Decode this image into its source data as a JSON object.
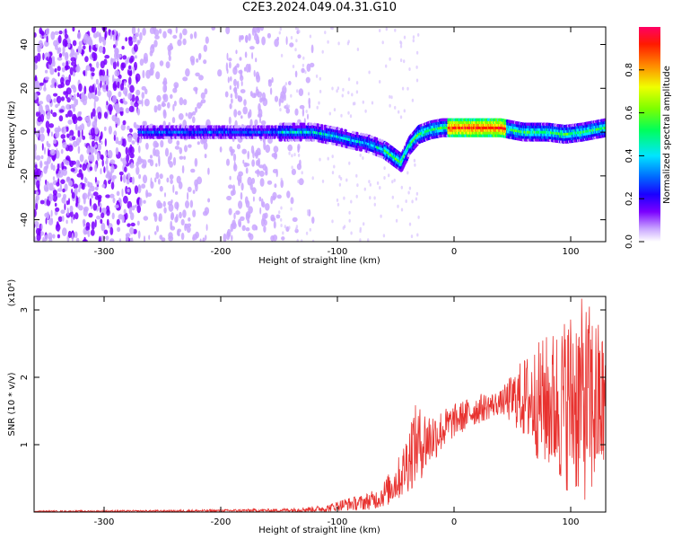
{
  "window": {
    "title": "C2E3.2024.049.04.31.G10"
  },
  "chart_data": [
    {
      "type": "heatmap",
      "xlabel": "Height of straight line (km)",
      "ylabel": "Frequency (Hz)",
      "xlim": [
        -360,
        130
      ],
      "ylim": [
        -50,
        48
      ],
      "xticks": [
        -300,
        -200,
        -100,
        0,
        100
      ],
      "yticks": [
        -40,
        -20,
        0,
        20,
        40
      ],
      "colorbar": {
        "label": "Normalized spectral amplitude",
        "range": [
          0,
          1
        ],
        "ticks": [
          "0.0",
          "0.2",
          "0.4",
          "0.6",
          "0.8"
        ],
        "colors": [
          "#ffffff",
          "#c9a6ff",
          "#7a00ff",
          "#1a00ff",
          "#0068ff",
          "#00e5ff",
          "#00ff5a",
          "#7dff00",
          "#f0ff00",
          "#ff8a00",
          "#ff1a00",
          "#ff0064"
        ]
      },
      "ridge": [
        {
          "x": -360,
          "y": 0
        },
        {
          "x": -270,
          "y": 0
        },
        {
          "x": -200,
          "y": 0
        },
        {
          "x": -150,
          "y": 0
        },
        {
          "x": -120,
          "y": 0
        },
        {
          "x": -100,
          "y": -2
        },
        {
          "x": -85,
          "y": -4
        },
        {
          "x": -75,
          "y": -5
        },
        {
          "x": -60,
          "y": -8
        },
        {
          "x": -50,
          "y": -12
        },
        {
          "x": -45,
          "y": -14
        },
        {
          "x": -38,
          "y": -6
        },
        {
          "x": -30,
          "y": -1
        },
        {
          "x": -20,
          "y": 1
        },
        {
          "x": -10,
          "y": 2
        },
        {
          "x": 0,
          "y": 2
        },
        {
          "x": 40,
          "y": 2
        },
        {
          "x": 60,
          "y": 0
        },
        {
          "x": 80,
          "y": 0
        },
        {
          "x": 95,
          "y": -1
        },
        {
          "x": 110,
          "y": 0
        },
        {
          "x": 130,
          "y": 2
        }
      ]
    },
    {
      "type": "line",
      "xlabel": "Height of straight line (km)",
      "ylabel": "SNR (10 * v/v)",
      "yscale_label": "(x10⁴)",
      "xlim": [
        -360,
        130
      ],
      "ylim": [
        0,
        3.2
      ],
      "xticks": [
        -300,
        -200,
        -100,
        0,
        100
      ],
      "yticks": [
        1,
        2,
        3
      ],
      "series": [
        {
          "color": "#e8322f",
          "envelope": [
            {
              "x": -360,
              "low": 0.0,
              "high": 0.02
            },
            {
              "x": -250,
              "low": 0.0,
              "high": 0.03
            },
            {
              "x": -150,
              "low": 0.0,
              "high": 0.05
            },
            {
              "x": -110,
              "low": 0.0,
              "high": 0.1
            },
            {
              "x": -95,
              "low": 0.02,
              "high": 0.2
            },
            {
              "x": -80,
              "low": 0.02,
              "high": 0.25
            },
            {
              "x": -65,
              "low": 0.05,
              "high": 0.35
            },
            {
              "x": -55,
              "low": 0.1,
              "high": 0.6
            },
            {
              "x": -45,
              "low": 0.2,
              "high": 0.9
            },
            {
              "x": -35,
              "low": 0.35,
              "high": 1.6
            },
            {
              "x": -25,
              "low": 0.55,
              "high": 1.55
            },
            {
              "x": -15,
              "low": 0.8,
              "high": 1.5
            },
            {
              "x": 0,
              "low": 1.1,
              "high": 1.6
            },
            {
              "x": 20,
              "low": 1.3,
              "high": 1.75
            },
            {
              "x": 40,
              "low": 1.45,
              "high": 1.8
            },
            {
              "x": 55,
              "low": 1.2,
              "high": 2.2
            },
            {
              "x": 70,
              "low": 0.8,
              "high": 2.5
            },
            {
              "x": 90,
              "low": 0.4,
              "high": 2.8
            },
            {
              "x": 105,
              "low": 0.2,
              "high": 3.2
            },
            {
              "x": 118,
              "low": 0.1,
              "high": 3.1
            },
            {
              "x": 130,
              "low": 0.6,
              "high": 2.6
            }
          ]
        }
      ]
    }
  ]
}
